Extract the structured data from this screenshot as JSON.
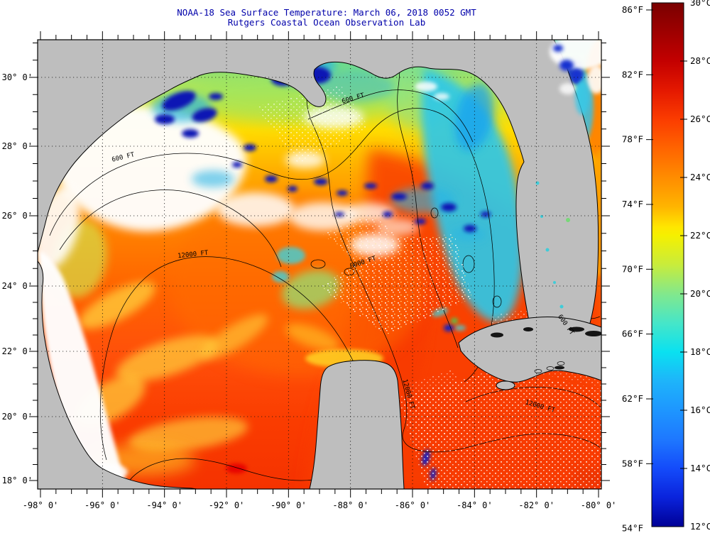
{
  "title": {
    "line1": "NOAA-18 Sea Surface Temperature:  March 06, 2018 0052 GMT",
    "line2": "Rutgers Coastal Ocean Observation Lab",
    "color": "#0000AA"
  },
  "axes": {
    "lon_ticks": [
      {
        "label": "-98° 0'",
        "value": -98
      },
      {
        "label": "-96° 0'",
        "value": -96
      },
      {
        "label": "-94° 0'",
        "value": -94
      },
      {
        "label": "-92° 0'",
        "value": -92
      },
      {
        "label": "-90° 0'",
        "value": -90
      },
      {
        "label": "-88° 0'",
        "value": -88
      },
      {
        "label": "-86° 0'",
        "value": -86
      },
      {
        "label": "-84° 0'",
        "value": -84
      },
      {
        "label": "-82° 0'",
        "value": -82
      },
      {
        "label": "-80° 0'",
        "value": -80
      }
    ],
    "lat_ticks": [
      {
        "label": "30° 0'",
        "value": 30
      },
      {
        "label": "28° 0'",
        "value": 28
      },
      {
        "label": "26° 0'",
        "value": 26
      },
      {
        "label": "24° 0'",
        "value": 24
      },
      {
        "label": "22° 0'",
        "value": 22
      },
      {
        "label": "20° 0'",
        "value": 20
      },
      {
        "label": "18° 0'",
        "value": 18
      }
    ]
  },
  "colorbar": {
    "range_celsius": [
      12,
      30
    ],
    "range_fahrenheit": [
      54,
      86
    ],
    "celsius_ticks": [
      {
        "label": "30°C",
        "value": 30
      },
      {
        "label": "28°C",
        "value": 28
      },
      {
        "label": "26°C",
        "value": 26
      },
      {
        "label": "24°C",
        "value": 24
      },
      {
        "label": "22°C",
        "value": 22
      },
      {
        "label": "20°C",
        "value": 20
      },
      {
        "label": "18°C",
        "value": 18
      },
      {
        "label": "16°C",
        "value": 16
      },
      {
        "label": "14°C",
        "value": 14
      },
      {
        "label": "12°C",
        "value": 12
      }
    ],
    "fahrenheit_ticks": [
      {
        "label": "86°F",
        "value": 86
      },
      {
        "label": "82°F",
        "value": 82
      },
      {
        "label": "78°F",
        "value": 78
      },
      {
        "label": "74°F",
        "value": 74
      },
      {
        "label": "70°F",
        "value": 70
      },
      {
        "label": "66°F",
        "value": 66
      },
      {
        "label": "62°F",
        "value": 62
      },
      {
        "label": "58°F",
        "value": 58
      },
      {
        "label": "54°F",
        "value": 54
      }
    ],
    "scale_colors": [
      {
        "c": 30,
        "hex": "#7A0000"
      },
      {
        "c": 29,
        "hex": "#9E0000"
      },
      {
        "c": 28,
        "hex": "#C30000"
      },
      {
        "c": 27,
        "hex": "#E41800"
      },
      {
        "c": 26,
        "hex": "#FB3C00"
      },
      {
        "c": 25,
        "hex": "#FF6400"
      },
      {
        "c": 24,
        "hex": "#FF8C00"
      },
      {
        "c": 23,
        "hex": "#FFB400"
      },
      {
        "c": 22.3,
        "hex": "#FFE600"
      },
      {
        "c": 22,
        "hex": "#F5F000"
      },
      {
        "c": 21,
        "hex": "#C8EC3C"
      },
      {
        "c": 20,
        "hex": "#82E88C"
      },
      {
        "c": 19,
        "hex": "#46E6C8"
      },
      {
        "c": 18,
        "hex": "#0AE1F0"
      },
      {
        "c": 17,
        "hex": "#1EB4FA"
      },
      {
        "c": 16,
        "hex": "#1E96FF"
      },
      {
        "c": 15,
        "hex": "#1E78FF"
      },
      {
        "c": 14,
        "hex": "#144BFA"
      },
      {
        "c": 13,
        "hex": "#0A23DC"
      },
      {
        "c": 12,
        "hex": "#000096"
      }
    ]
  },
  "map": {
    "land_color": "#BEBEBE",
    "contour_labels": [
      {
        "text": "600 FT"
      },
      {
        "text": "600 FT"
      },
      {
        "text": "12000 FT"
      },
      {
        "text": "6000 FT"
      },
      {
        "text": "12000 FT"
      },
      {
        "text": "12000 FT"
      },
      {
        "text": "600 FT"
      }
    ]
  }
}
